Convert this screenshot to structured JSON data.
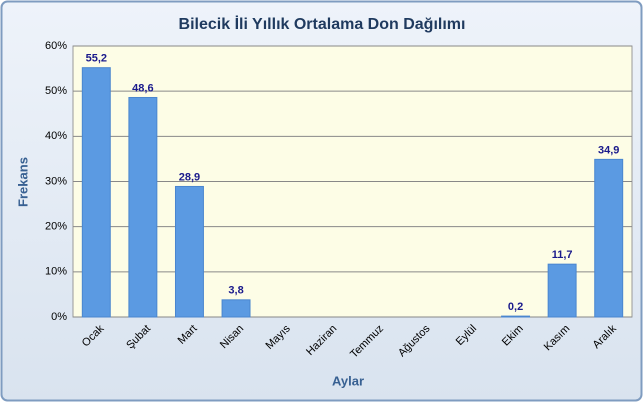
{
  "chart_data": {
    "type": "bar",
    "title": "Bilecik İli Yıllık Ortalama Don Dağılımı",
    "x_label": "Aylar",
    "y_label": "Frekans",
    "categories": [
      "Ocak",
      "Şubat",
      "Mart",
      "Nisan",
      "Mayıs",
      "Haziran",
      "Temmuz",
      "Ağustos",
      "Eylül",
      "Ekim",
      "Kasım",
      "Aralık"
    ],
    "values": [
      55.2,
      48.6,
      28.9,
      3.8,
      null,
      null,
      null,
      null,
      null,
      0.2,
      11.7,
      34.9
    ],
    "value_labels": [
      "55,2",
      "48,6",
      "28,9",
      "3,8",
      null,
      null,
      null,
      null,
      null,
      "0,2",
      "11,7",
      "34,9"
    ],
    "color": "#5b9ae2",
    "ylim": [
      0,
      60
    ],
    "yticks": [
      {
        "value": 0,
        "label": "0%"
      },
      {
        "value": 10,
        "label": "10%"
      },
      {
        "value": 20,
        "label": "20%"
      },
      {
        "value": 30,
        "label": "30%"
      },
      {
        "value": 40,
        "label": "40%"
      },
      {
        "value": 50,
        "label": "50%"
      },
      {
        "value": 60,
        "label": "60%"
      }
    ],
    "grid": true
  }
}
